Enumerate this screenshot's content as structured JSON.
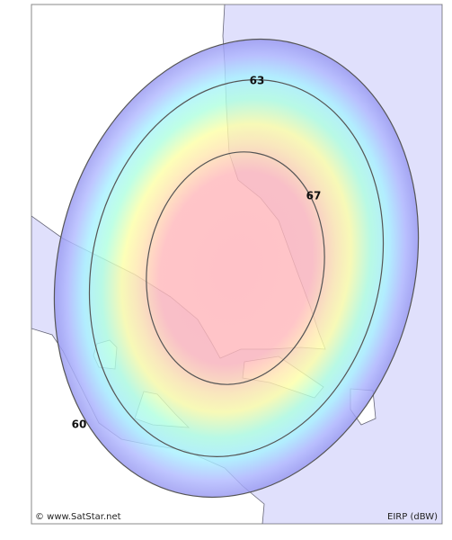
{
  "map": {
    "contours": [
      {
        "label": "60"
      },
      {
        "label": "63"
      },
      {
        "label": "67"
      }
    ],
    "credit": "© www.SatStar.net",
    "legend": "EIRP (dBW)"
  }
}
